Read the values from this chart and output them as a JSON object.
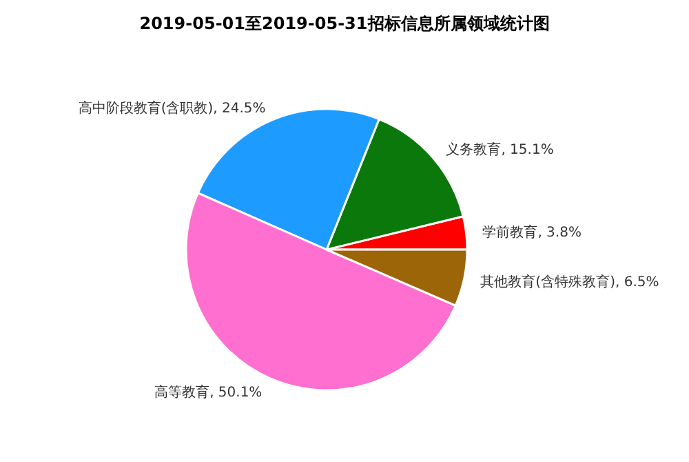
{
  "chart_data": {
    "type": "pie",
    "title": "2019-05-01至2019-05-31招标信息所属领域统计图",
    "categories": [
      "学前教育",
      "义务教育",
      "高中阶段教育(含职教)",
      "高等教育",
      "其他教育(含特殊教育)"
    ],
    "values": [
      3.8,
      15.1,
      24.5,
      50.1,
      6.5
    ],
    "colors": [
      "#ff0000",
      "#0a780a",
      "#1e9bff",
      "#ff6fd0",
      "#9c6508"
    ],
    "value_labels": [
      "3.8%",
      "15.1%",
      "24.5%",
      "50.1%",
      "6.5%"
    ]
  }
}
